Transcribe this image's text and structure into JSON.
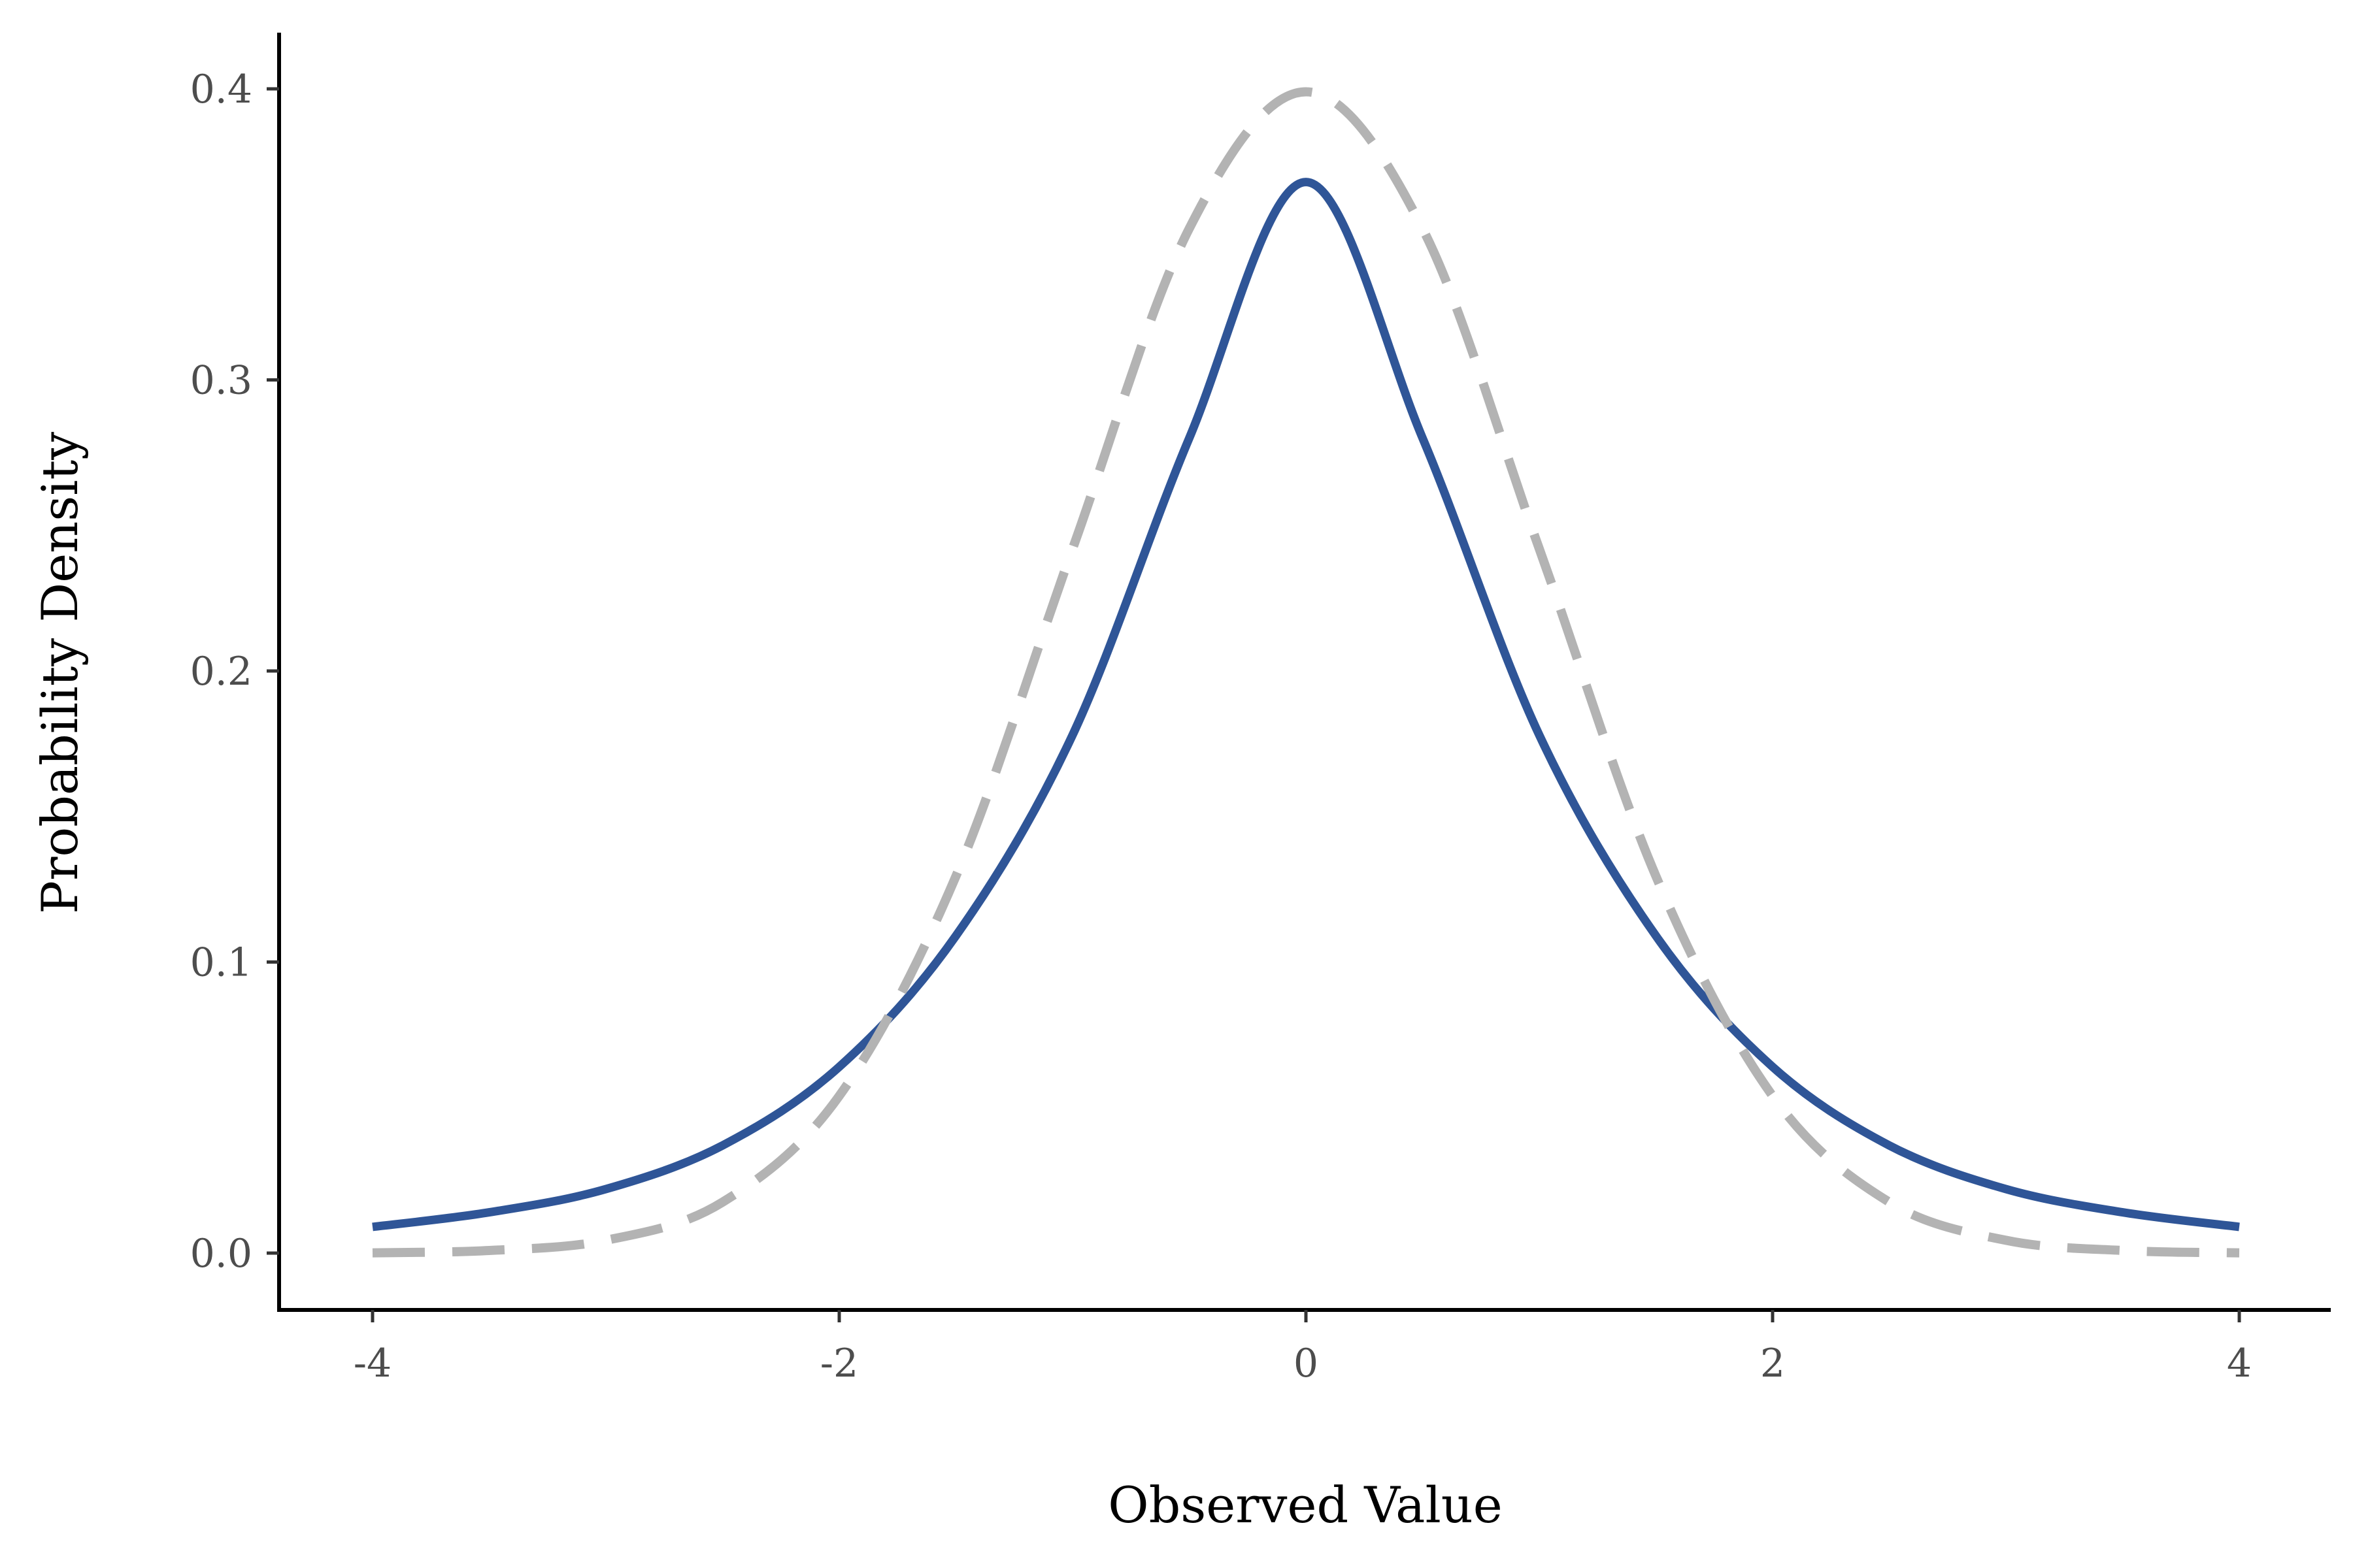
{
  "chart_data": {
    "type": "line",
    "title": "",
    "xlabel": "Observed Value",
    "ylabel": "Probability Density",
    "xlim": [
      -4,
      4
    ],
    "ylim": [
      0,
      0.4
    ],
    "x_ticks": [
      "-4",
      "-2",
      "0",
      "2",
      "4"
    ],
    "y_ticks": [
      "0.0",
      "0.1",
      "0.2",
      "0.3",
      "0.4"
    ],
    "grid": false,
    "legend": "none",
    "x": [
      -4,
      -3.5,
      -3,
      -2.5,
      -2,
      -1.5,
      -1,
      -0.5,
      0,
      0.5,
      1,
      1.5,
      2,
      2.5,
      3,
      3.5,
      4
    ],
    "series": [
      {
        "style": "solid",
        "color": "#2f5597",
        "values": [
          0.009,
          0.014,
          0.022,
          0.037,
          0.064,
          0.109,
          0.178,
          0.28,
          0.368,
          0.28,
          0.178,
          0.109,
          0.064,
          0.037,
          0.022,
          0.014,
          0.009
        ]
      },
      {
        "style": "dashed",
        "color": "#b3b3b3",
        "values": [
          0.0001,
          0.0009,
          0.0044,
          0.0175,
          0.054,
          0.1295,
          0.242,
          0.352,
          0.399,
          0.352,
          0.242,
          0.1295,
          0.054,
          0.0175,
          0.0044,
          0.0009,
          0.0001
        ]
      }
    ]
  }
}
